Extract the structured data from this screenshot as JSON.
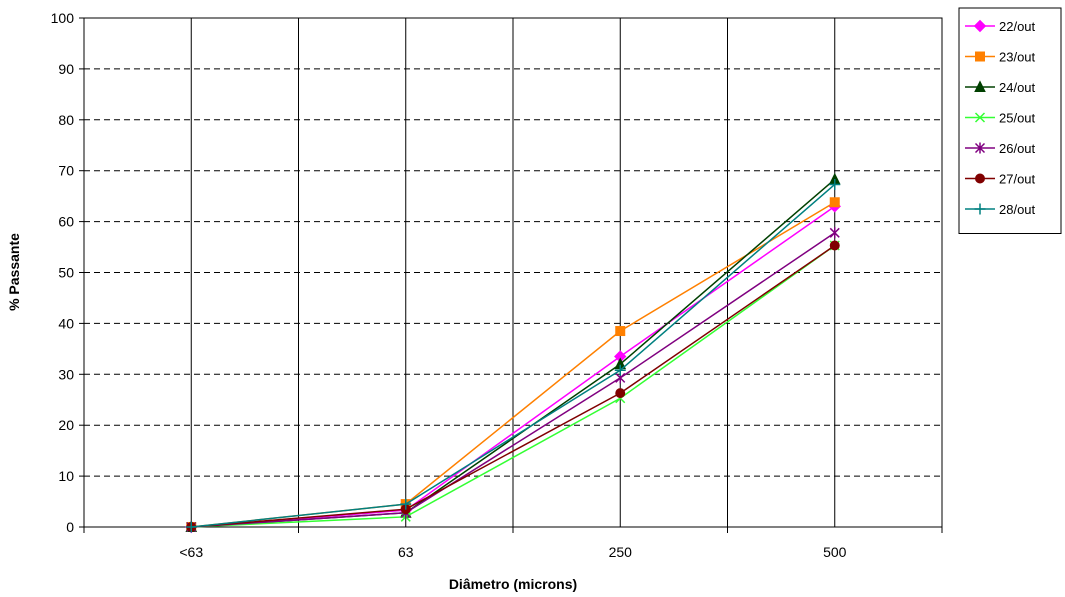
{
  "chart_data": {
    "type": "line",
    "categories": [
      "<63",
      "63",
      "250",
      "500"
    ],
    "xlabel": "Diâmetro (microns)",
    "ylabel": "% Passante",
    "ylim": [
      0,
      100
    ],
    "yticks": [
      0,
      10,
      20,
      30,
      40,
      50,
      60,
      70,
      80,
      90,
      100
    ],
    "grid": "horizontal dashed major, vertical solid",
    "legend_position": "right",
    "series": [
      {
        "name": "22/out",
        "color": "#ff00ff",
        "marker": "diamond",
        "values": [
          0,
          3.3,
          33.5,
          63.0
        ]
      },
      {
        "name": "23/out",
        "color": "#ff8000",
        "marker": "square",
        "values": [
          0,
          4.5,
          38.5,
          63.8
        ]
      },
      {
        "name": "24/out",
        "color": "#004000",
        "marker": "triangle",
        "values": [
          0,
          2.8,
          32.0,
          68.3
        ]
      },
      {
        "name": "25/out",
        "color": "#33ff33",
        "marker": "x",
        "values": [
          0,
          2.0,
          25.3,
          55.3
        ]
      },
      {
        "name": "26/out",
        "color": "#800080",
        "marker": "asterisk",
        "values": [
          0,
          2.8,
          29.3,
          57.8
        ]
      },
      {
        "name": "27/out",
        "color": "#800000",
        "marker": "circle",
        "values": [
          0,
          3.5,
          26.3,
          55.3
        ]
      },
      {
        "name": "28/out",
        "color": "#008080",
        "marker": "plus",
        "values": [
          0,
          4.5,
          30.8,
          67.3
        ]
      }
    ]
  }
}
